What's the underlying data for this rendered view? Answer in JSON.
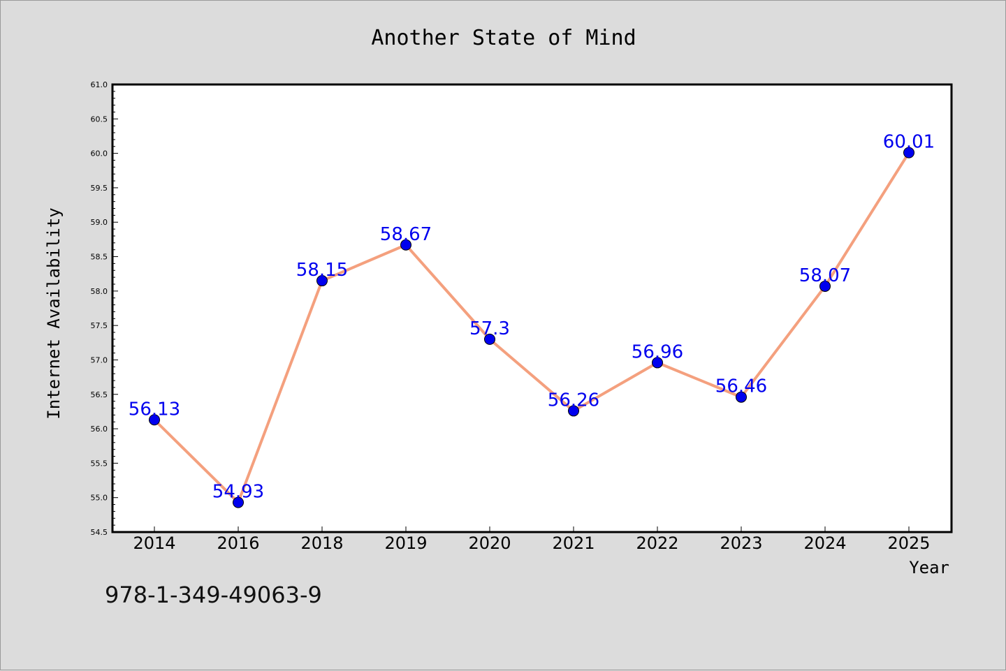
{
  "chart_data": {
    "type": "line",
    "title": "Another State of Mind",
    "xlabel": "Year",
    "ylabel": "Internet Availability",
    "categories": [
      "2014",
      "2016",
      "2018",
      "2019",
      "2020",
      "2021",
      "2022",
      "2023",
      "2024",
      "2025"
    ],
    "values": [
      56.13,
      54.93,
      58.15,
      58.67,
      57.3,
      56.26,
      56.96,
      56.46,
      58.07,
      60.01
    ],
    "data_labels": [
      "56.13",
      "54.93",
      "58.15",
      "58.67",
      "57.3",
      "56.26",
      "56.96",
      "56.46",
      "58.07",
      "60.01"
    ],
    "ylim": [
      54.5,
      61.0
    ],
    "yticks": [
      "54.5",
      "55.0",
      "55.5",
      "56.0",
      "56.5",
      "57.0",
      "57.5",
      "58.0",
      "58.5",
      "59.0",
      "59.5",
      "60.0",
      "60.5",
      "61.0"
    ],
    "grid": false,
    "legend": "none",
    "line_color": "#f4a07e",
    "marker_color": "#0000ee",
    "label_color": "#0000ee"
  },
  "footer": {
    "isbn": "978-1-349-49063-9"
  }
}
